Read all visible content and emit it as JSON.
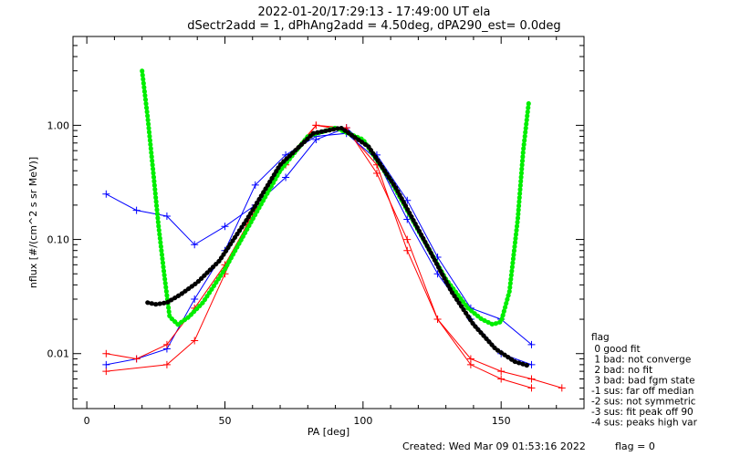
{
  "header": {
    "title_line1": "2022-01-20/17:29:13 - 17:49:00 UT ela",
    "title_line2": "dSectr2add = 1, dPhAng2add = 4.50deg, dPA290_est=    0.0deg"
  },
  "footer": {
    "created": "Created: Wed Mar 09 01:53:16 2022",
    "flag_value": "flag = 0"
  },
  "legend": {
    "title": "flag",
    "entries": [
      " 0 good fit",
      " 1 bad: not converge",
      " 2 bad: no fit",
      " 3 bad: bad fgm state",
      "-1 sus: far off median",
      "-2 sus: not symmetric",
      "-3 sus: fit peak off 90",
      "-4 sus: peaks high var"
    ]
  },
  "colors": {
    "sector_series_red": "#ff0000",
    "sector_series_blue": "#0000ff",
    "fit_curve": "#00ee00",
    "median_curve": "#000000"
  },
  "chart_data": {
    "type": "line",
    "xlabel": "PA [deg]",
    "ylabel": "nflux [#/(cm^2 s sr MeV)]",
    "xlim": [
      -5,
      180
    ],
    "ylim": [
      0.0033,
      6.0
    ],
    "yscale": "log",
    "x_ticks": [
      0,
      50,
      100,
      150
    ],
    "x_tick_labels": [
      "0",
      "50",
      "100",
      "150"
    ],
    "y_ticks": [
      0.01,
      0.1,
      1.0
    ],
    "y_tick_labels": [
      "0.01",
      "0.10",
      "1.00"
    ],
    "grid": false,
    "legend_placement": "right-outside",
    "series": [
      {
        "color": "red",
        "x": [
          7,
          29,
          39,
          50,
          61,
          72,
          83,
          94,
          105,
          116,
          127,
          139,
          150,
          161,
          172
        ],
        "y": [
          0.007,
          0.008,
          0.013,
          0.05,
          0.2,
          0.5,
          1.0,
          0.9,
          0.45,
          0.08,
          0.02,
          0.009,
          0.007,
          0.006,
          0.005
        ]
      },
      {
        "color": "blue",
        "x": [
          7,
          18,
          29,
          39,
          50,
          61,
          72,
          83,
          94,
          105,
          116,
          127,
          139,
          150,
          161
        ],
        "y": [
          0.25,
          0.18,
          0.16,
          0.09,
          0.13,
          0.2,
          0.35,
          0.75,
          0.95,
          0.55,
          0.22,
          0.07,
          0.025,
          0.02,
          0.012
        ]
      },
      {
        "color": "blue",
        "x": [
          7,
          18,
          29,
          39,
          50,
          61,
          72,
          83,
          94,
          105,
          116,
          127,
          139,
          150,
          161
        ],
        "y": [
          0.008,
          0.009,
          0.011,
          0.03,
          0.08,
          0.3,
          0.55,
          0.8,
          0.85,
          0.5,
          0.15,
          0.05,
          0.02,
          0.01,
          0.008
        ]
      },
      {
        "color": "red",
        "x": [
          7,
          18,
          29,
          39,
          50,
          61,
          72,
          83,
          94,
          105,
          116,
          127,
          139,
          150,
          161
        ],
        "y": [
          0.01,
          0.009,
          0.012,
          0.025,
          0.06,
          0.18,
          0.45,
          1.0,
          0.95,
          0.38,
          0.1,
          0.02,
          0.008,
          0.006,
          0.005
        ]
      },
      {
        "name": "fit",
        "color": "green",
        "x": [
          20,
          22,
          24,
          26,
          28,
          30,
          33,
          37,
          42,
          50,
          60,
          70,
          80,
          90,
          100,
          110,
          120,
          130,
          138,
          143,
          147,
          150,
          153,
          156,
          158,
          160
        ],
        "y": [
          3.0,
          1.2,
          0.4,
          0.13,
          0.05,
          0.021,
          0.018,
          0.021,
          0.028,
          0.055,
          0.15,
          0.4,
          0.8,
          0.95,
          0.75,
          0.33,
          0.12,
          0.045,
          0.025,
          0.02,
          0.018,
          0.019,
          0.035,
          0.15,
          0.6,
          1.6
        ]
      },
      {
        "name": "median",
        "color": "black",
        "x": [
          22,
          25,
          29,
          34,
          40,
          48,
          58,
          70,
          82,
          92,
          102,
          112,
          122,
          132,
          140,
          148,
          155,
          160
        ],
        "y": [
          0.028,
          0.027,
          0.028,
          0.033,
          0.042,
          0.065,
          0.15,
          0.45,
          0.85,
          0.95,
          0.65,
          0.28,
          0.1,
          0.035,
          0.018,
          0.011,
          0.0085,
          0.0078
        ]
      }
    ]
  }
}
